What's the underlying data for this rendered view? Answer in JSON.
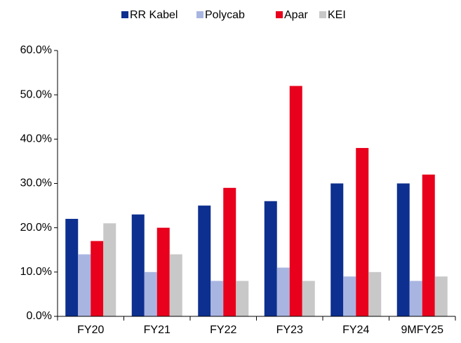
{
  "chart_data": {
    "type": "bar",
    "categories": [
      "FY20",
      "FY21",
      "FY22",
      "FY23",
      "FY24",
      "9MFY25"
    ],
    "series": [
      {
        "name": "RR Kabel",
        "color": "#0d2f8f",
        "values": [
          22,
          23,
          25,
          26,
          30,
          30
        ]
      },
      {
        "name": "Polycab",
        "color": "#a9b5e1",
        "values": [
          14,
          10,
          8,
          11,
          9,
          8
        ]
      },
      {
        "name": "Apar",
        "color": "#e8001c",
        "values": [
          17,
          20,
          29,
          52,
          38,
          32
        ]
      },
      {
        "name": "KEI",
        "color": "#c8c8c8",
        "values": [
          21,
          14,
          8,
          8,
          10,
          9
        ]
      }
    ],
    "ylim": [
      0,
      60
    ],
    "yticks": [
      {
        "value": 0,
        "label": "0.0%"
      },
      {
        "value": 10,
        "label": "10.0%"
      },
      {
        "value": 20,
        "label": "20.0%"
      },
      {
        "value": 30,
        "label": "30.0%"
      },
      {
        "value": 40,
        "label": "40.0%"
      },
      {
        "value": 50,
        "label": "50.0%"
      },
      {
        "value": 60,
        "label": "60.0%"
      }
    ],
    "grid": false,
    "legend": "top"
  }
}
